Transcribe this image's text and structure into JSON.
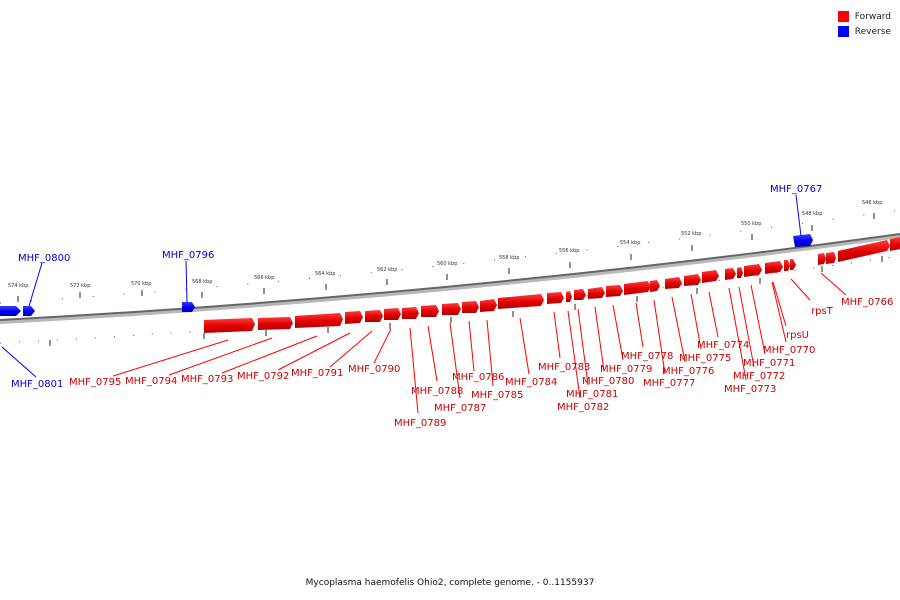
{
  "legend": {
    "items": [
      {
        "label": "Forward",
        "color": "#ff0000"
      },
      {
        "label": "Reverse",
        "color": "#0000ff"
      }
    ]
  },
  "footer": {
    "caption": "Mycoplasma haemofelis Ohio2, complete genome. - 0..1155937"
  },
  "scale_labels": {
    "outer": [
      {
        "text": "574 kbp",
        "pos": 574
      },
      {
        "text": "572 kbp",
        "pos": 572
      },
      {
        "text": "570 kbp",
        "pos": 570
      },
      {
        "text": "568 kbp",
        "pos": 568
      },
      {
        "text": "566 kbp",
        "pos": 566
      },
      {
        "text": "564 kbp",
        "pos": 564
      },
      {
        "text": "562 kbp",
        "pos": 562
      },
      {
        "text": "560 kbp",
        "pos": 560
      },
      {
        "text": "558 kbp",
        "pos": 558
      },
      {
        "text": "556 kbp",
        "pos": 556
      },
      {
        "text": "554 kbp",
        "pos": 554
      },
      {
        "text": "552 kbp",
        "pos": 552
      },
      {
        "text": "550 kbp",
        "pos": 550
      },
      {
        "text": "548 kbp",
        "pos": 548
      },
      {
        "text": "546 kbp",
        "pos": 546
      }
    ]
  },
  "genes_reverse": [
    {
      "name": "MHF_0800",
      "color": "#0000ff"
    },
    {
      "name": "MHF_0796",
      "color": "#0000ff"
    },
    {
      "name": "MHF_0767",
      "color": "#0000ff"
    },
    {
      "name": "MHF_0801",
      "color": "#0000ff"
    }
  ],
  "genes_forward": [
    {
      "name": "MHF_0795"
    },
    {
      "name": "MHF_0794"
    },
    {
      "name": "MHF_0793"
    },
    {
      "name": "MHF_0792"
    },
    {
      "name": "MHF_0791"
    },
    {
      "name": "MHF_0790"
    },
    {
      "name": "MHF_0789"
    },
    {
      "name": "MHF_0788"
    },
    {
      "name": "MHF_0787"
    },
    {
      "name": "MHF_0786"
    },
    {
      "name": "MHF_0785"
    },
    {
      "name": "MHF_0784"
    },
    {
      "name": "MHF_0783"
    },
    {
      "name": "MHF_0782"
    },
    {
      "name": "MHF_0781"
    },
    {
      "name": "MHF_0780"
    },
    {
      "name": "MHF_0779"
    },
    {
      "name": "MHF_0778"
    },
    {
      "name": "MHF_0777"
    },
    {
      "name": "MHF_0776"
    },
    {
      "name": "MHF_0775"
    },
    {
      "name": "MHF_0774"
    },
    {
      "name": "MHF_0773"
    },
    {
      "name": "MHF_0772"
    },
    {
      "name": "MHF_0771"
    },
    {
      "name": "rpsU"
    },
    {
      "name": "MHF_0770"
    },
    {
      "name": "rpsT"
    },
    {
      "name": "MHF_0766"
    }
  ]
}
